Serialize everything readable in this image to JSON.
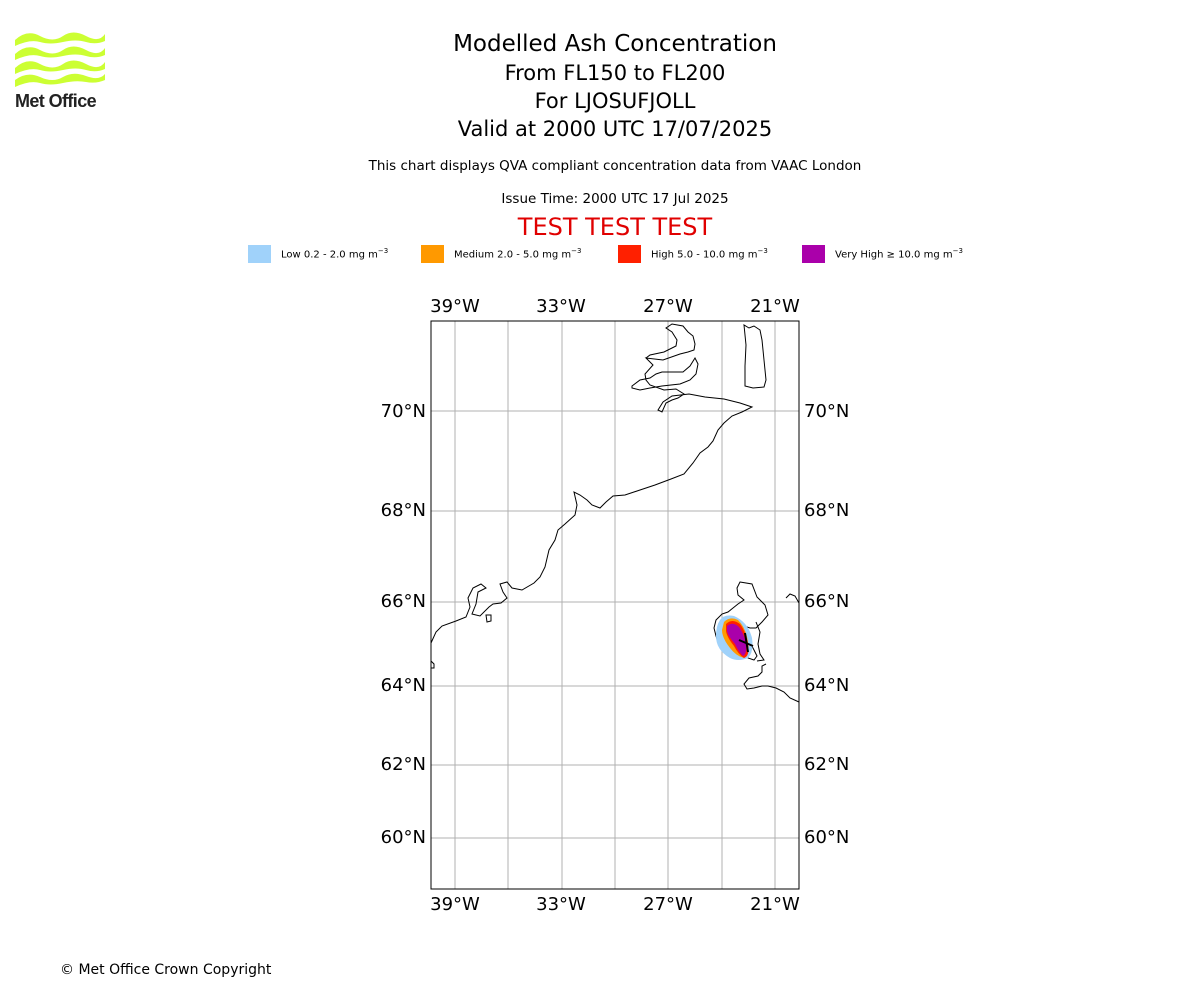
{
  "logo": {
    "text": "Met Office",
    "color": "#ccff33"
  },
  "title": {
    "line1": "Modelled Ash Concentration",
    "line2": "From FL150 to FL200",
    "line3": "For LJOSUFJOLL",
    "line4": "Valid at 2000 UTC 17/07/2025"
  },
  "info": {
    "description": "This chart displays QVA compliant concentration data from VAAC London",
    "issue_time": "Issue Time: 2000 UTC 17 Jul 2025",
    "test_banner": "TEST TEST TEST"
  },
  "legend": [
    {
      "text": "Low 0.2 - 2.0 mg m",
      "color": "#a0d2fa"
    },
    {
      "text": "Medium 2.0 - 5.0 mg m",
      "color": "#ff9900"
    },
    {
      "text": "High 5.0 - 10.0 mg m",
      "color": "#ff2000"
    },
    {
      "text": "Very High  ≥  10.0 mg m",
      "color": "#aa00aa"
    }
  ],
  "legend_unit_exponent": "−3",
  "map": {
    "lon_ticks": [
      "39°W",
      "33°W",
      "27°W",
      "21°W"
    ],
    "lat_ticks": [
      "70°N",
      "68°N",
      "66°N",
      "64°N",
      "62°N",
      "60°N"
    ]
  },
  "footer": {
    "copyright": "© Met Office Crown Copyright"
  }
}
